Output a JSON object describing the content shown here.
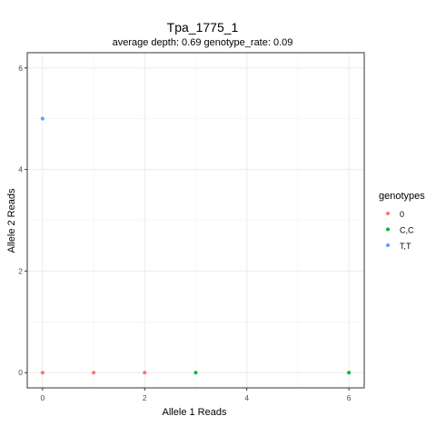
{
  "chart_data": {
    "type": "scatter",
    "title": "Tpa_1775_1",
    "subtitle": "average depth:  0.69  genotype_rate:  0.09",
    "xlabel": "Allele 1 Reads",
    "ylabel": "Allele 2 Reads",
    "xlim": [
      -0.3,
      6.3
    ],
    "ylim": [
      -0.3,
      6.3
    ],
    "x_ticks": [
      0,
      2,
      4,
      6
    ],
    "y_ticks": [
      0,
      2,
      4,
      6
    ],
    "x_tick_labels": [
      "0",
      "2",
      "4",
      "6"
    ],
    "y_tick_labels": [
      "0",
      "2",
      "4",
      "6"
    ],
    "grid": true,
    "legend": {
      "title": "genotypes",
      "placement": "right"
    },
    "series": [
      {
        "name": "0",
        "color": "#F8766D",
        "points": [
          [
            0,
            0
          ],
          [
            1,
            0
          ],
          [
            2,
            0
          ]
        ]
      },
      {
        "name": "C,C",
        "color": "#00BA38",
        "points": [
          [
            3,
            0
          ],
          [
            6,
            0
          ]
        ]
      },
      {
        "name": "T,T",
        "color": "#619CFF",
        "points": [
          [
            0,
            5
          ]
        ]
      }
    ]
  }
}
